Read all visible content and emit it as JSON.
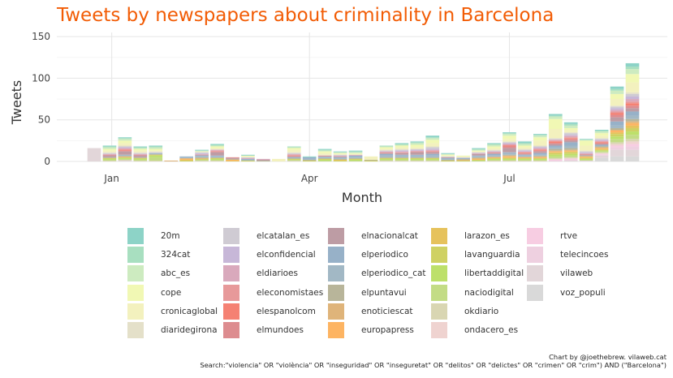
{
  "chart_data": {
    "type": "bar",
    "stacked": true,
    "title": "Tweets by newspapers about criminality in Barcelona",
    "xlabel": "Month",
    "ylabel": "Tweets",
    "ylim": [
      0,
      155
    ],
    "yticks": [
      0,
      50,
      100,
      150
    ],
    "xticks": [
      "Jan",
      "Apr",
      "Jul"
    ],
    "grid": true,
    "legend_position": "bottom",
    "x": [
      "2017-12-24",
      "2017-12-31",
      "2018-01-07",
      "2018-01-14",
      "2018-01-21",
      "2018-01-28",
      "2018-02-04",
      "2018-02-11",
      "2018-02-18",
      "2018-02-25",
      "2018-03-04",
      "2018-03-11",
      "2018-03-18",
      "2018-03-25",
      "2018-04-01",
      "2018-04-08",
      "2018-04-15",
      "2018-04-22",
      "2018-04-29",
      "2018-05-06",
      "2018-05-13",
      "2018-05-20",
      "2018-05-27",
      "2018-06-03",
      "2018-06-10",
      "2018-06-17",
      "2018-06-24",
      "2018-07-01",
      "2018-07-08",
      "2018-07-15",
      "2018-07-22",
      "2018-07-29",
      "2018-08-05",
      "2018-08-12",
      "2018-08-19",
      "2018-08-26"
    ],
    "series": [
      {
        "name": "20m",
        "color": "#8dd3c7",
        "values": [
          0,
          1,
          1,
          1,
          1,
          0,
          0,
          1,
          1,
          0,
          1,
          0,
          0,
          0,
          1,
          1,
          1,
          1,
          0,
          0,
          1,
          1,
          2,
          1,
          0,
          1,
          1,
          1,
          2,
          1,
          2,
          2,
          1,
          1,
          3,
          4
        ]
      },
      {
        "name": "324cat",
        "color": "#a8dfc0",
        "values": [
          0,
          1,
          1,
          1,
          1,
          0,
          0,
          0,
          1,
          0,
          0,
          0,
          0,
          1,
          0,
          1,
          0,
          1,
          0,
          1,
          1,
          1,
          1,
          0,
          0,
          1,
          1,
          1,
          1,
          1,
          1,
          2,
          0,
          1,
          2,
          3
        ]
      },
      {
        "name": "abc_es",
        "color": "#cdebc0",
        "values": [
          0,
          2,
          2,
          1,
          2,
          0,
          0,
          1,
          1,
          0,
          0,
          0,
          0,
          1,
          0,
          1,
          1,
          1,
          0,
          1,
          1,
          2,
          2,
          1,
          0,
          1,
          2,
          2,
          2,
          2,
          3,
          3,
          1,
          2,
          4,
          6
        ]
      },
      {
        "name": "cope",
        "color": "#f1f8b4",
        "values": [
          0,
          2,
          3,
          2,
          2,
          0,
          0,
          0,
          2,
          0,
          1,
          0,
          0,
          2,
          0,
          2,
          1,
          1,
          0,
          2,
          2,
          3,
          4,
          1,
          1,
          1,
          2,
          4,
          2,
          4,
          12,
          2,
          6,
          3,
          6,
          10
        ]
      },
      {
        "name": "cronicaglobal",
        "color": "#f3f1be",
        "values": [
          0,
          2,
          3,
          2,
          1,
          0,
          0,
          1,
          1,
          0,
          1,
          0,
          3,
          3,
          0,
          2,
          1,
          1,
          4,
          1,
          2,
          2,
          4,
          1,
          1,
          1,
          2,
          3,
          2,
          6,
          11,
          3,
          6,
          3,
          8,
          12
        ]
      },
      {
        "name": "diaridegirona",
        "color": "#e4e0c9",
        "values": [
          0,
          1,
          1,
          1,
          1,
          0,
          0,
          0,
          1,
          0,
          0,
          0,
          0,
          1,
          0,
          1,
          0,
          0,
          0,
          1,
          1,
          0,
          1,
          0,
          0,
          0,
          1,
          1,
          1,
          1,
          1,
          1,
          1,
          1,
          1,
          2
        ]
      },
      {
        "name": "elcatalan_es",
        "color": "#cfcbd3",
        "values": [
          0,
          1,
          1,
          1,
          1,
          0,
          0,
          1,
          0,
          0,
          1,
          0,
          0,
          1,
          0,
          0,
          1,
          0,
          0,
          1,
          1,
          1,
          2,
          1,
          1,
          1,
          1,
          1,
          1,
          1,
          1,
          2,
          1,
          1,
          2,
          3
        ]
      },
      {
        "name": "elconfidencial",
        "color": "#c7b7d8",
        "values": [
          0,
          0,
          1,
          0,
          0,
          0,
          0,
          1,
          0,
          0,
          0,
          0,
          0,
          0,
          0,
          0,
          0,
          0,
          0,
          0,
          1,
          1,
          1,
          0,
          0,
          0,
          0,
          1,
          1,
          1,
          0,
          1,
          1,
          1,
          2,
          3
        ]
      },
      {
        "name": "eldiarioes",
        "color": "#d9a9bc",
        "values": [
          0,
          1,
          1,
          1,
          0,
          0,
          0,
          1,
          1,
          0,
          1,
          1,
          0,
          1,
          0,
          0,
          1,
          1,
          0,
          1,
          1,
          1,
          1,
          0,
          0,
          1,
          1,
          1,
          1,
          1,
          1,
          2,
          1,
          1,
          2,
          3
        ]
      },
      {
        "name": "eleconomistaes",
        "color": "#e7999a",
        "values": [
          0,
          0,
          1,
          0,
          0,
          0,
          0,
          0,
          1,
          0,
          0,
          0,
          0,
          1,
          0,
          0,
          0,
          0,
          0,
          0,
          1,
          0,
          1,
          0,
          0,
          0,
          0,
          1,
          0,
          1,
          1,
          1,
          0,
          1,
          2,
          2
        ]
      },
      {
        "name": "elespanolcom",
        "color": "#f58173",
        "values": [
          0,
          0,
          1,
          0,
          0,
          0,
          0,
          0,
          0,
          0,
          0,
          0,
          0,
          0,
          0,
          0,
          0,
          0,
          0,
          0,
          0,
          0,
          0,
          0,
          0,
          0,
          0,
          1,
          1,
          1,
          2,
          1,
          0,
          1,
          2,
          3
        ]
      },
      {
        "name": "elmundoes",
        "color": "#dd8c8f",
        "values": [
          0,
          1,
          1,
          1,
          0,
          0,
          0,
          0,
          1,
          1,
          0,
          0,
          0,
          1,
          0,
          1,
          0,
          0,
          0,
          1,
          0,
          1,
          1,
          0,
          0,
          0,
          1,
          2,
          1,
          1,
          1,
          2,
          1,
          1,
          3,
          3
        ]
      },
      {
        "name": "elnacionalcat",
        "color": "#bd9ca4",
        "values": [
          0,
          2,
          4,
          2,
          0,
          0,
          0,
          1,
          4,
          1,
          0,
          1,
          0,
          1,
          0,
          0,
          1,
          0,
          0,
          1,
          2,
          3,
          2,
          1,
          0,
          2,
          1,
          5,
          1,
          2,
          2,
          2,
          1,
          1,
          5,
          4
        ]
      },
      {
        "name": "elperiodico",
        "color": "#97b1c8",
        "values": [
          0,
          0,
          1,
          0,
          1,
          0,
          1,
          1,
          1,
          0,
          1,
          0,
          0,
          1,
          2,
          1,
          1,
          2,
          0,
          2,
          1,
          1,
          2,
          1,
          1,
          1,
          2,
          1,
          1,
          2,
          2,
          4,
          0,
          1,
          5,
          5
        ]
      },
      {
        "name": "elperiodico_cat",
        "color": "#a2b8c5",
        "values": [
          0,
          0,
          0,
          0,
          0,
          0,
          1,
          1,
          1,
          0,
          1,
          0,
          0,
          0,
          1,
          1,
          1,
          1,
          0,
          2,
          2,
          2,
          2,
          1,
          0,
          1,
          1,
          2,
          1,
          1,
          2,
          3,
          0,
          1,
          3,
          4
        ]
      },
      {
        "name": "elpuntavui",
        "color": "#b8b59a",
        "values": [
          0,
          1,
          1,
          1,
          1,
          0,
          0,
          1,
          1,
          1,
          0,
          1,
          0,
          1,
          1,
          1,
          1,
          1,
          1,
          1,
          1,
          1,
          1,
          1,
          1,
          1,
          1,
          1,
          1,
          1,
          2,
          2,
          1,
          1,
          2,
          3
        ]
      },
      {
        "name": "enoticiescat",
        "color": "#dfb47a",
        "values": [
          0,
          0,
          1,
          0,
          0,
          1,
          1,
          1,
          0,
          0,
          0,
          0,
          0,
          0,
          0,
          0,
          0,
          0,
          0,
          0,
          0,
          0,
          0,
          0,
          1,
          1,
          0,
          1,
          0,
          1,
          1,
          1,
          0,
          1,
          1,
          2
        ]
      },
      {
        "name": "europapress",
        "color": "#fdb462",
        "values": [
          0,
          0,
          0,
          0,
          0,
          0,
          1,
          0,
          0,
          1,
          0,
          0,
          0,
          0,
          0,
          0,
          0,
          0,
          0,
          0,
          0,
          0,
          0,
          0,
          0,
          1,
          1,
          1,
          1,
          1,
          1,
          1,
          1,
          1,
          2,
          3
        ]
      },
      {
        "name": "larazon_es",
        "color": "#e6c25c",
        "values": [
          0,
          0,
          0,
          0,
          0,
          0,
          1,
          0,
          0,
          1,
          0,
          0,
          0,
          0,
          0,
          0,
          1,
          0,
          0,
          0,
          0,
          0,
          0,
          0,
          0,
          0,
          0,
          1,
          0,
          0,
          1,
          1,
          1,
          1,
          2,
          3
        ]
      },
      {
        "name": "lavanguardia",
        "color": "#cfd163",
        "values": [
          0,
          1,
          1,
          1,
          1,
          0,
          1,
          1,
          1,
          0,
          1,
          0,
          0,
          1,
          1,
          1,
          1,
          1,
          1,
          1,
          1,
          1,
          1,
          1,
          1,
          1,
          1,
          1,
          1,
          1,
          2,
          2,
          1,
          1,
          3,
          4
        ]
      },
      {
        "name": "libertaddigital",
        "color": "#bde06a",
        "values": [
          0,
          1,
          1,
          1,
          2,
          0,
          0,
          0,
          1,
          0,
          0,
          0,
          0,
          0,
          0,
          1,
          0,
          1,
          0,
          1,
          1,
          1,
          1,
          0,
          0,
          0,
          1,
          1,
          1,
          1,
          2,
          2,
          1,
          1,
          3,
          4
        ]
      },
      {
        "name": "naciodigital",
        "color": "#c3dc85",
        "values": [
          0,
          1,
          1,
          1,
          4,
          0,
          0,
          1,
          1,
          0,
          0,
          0,
          0,
          1,
          0,
          1,
          0,
          1,
          0,
          1,
          1,
          1,
          1,
          0,
          0,
          1,
          1,
          1,
          1,
          1,
          2,
          2,
          1,
          1,
          4,
          5
        ]
      },
      {
        "name": "okdiario",
        "color": "#d9d6b2",
        "values": [
          0,
          1,
          1,
          1,
          1,
          0,
          0,
          1,
          1,
          0,
          0,
          0,
          0,
          1,
          0,
          0,
          0,
          0,
          0,
          1,
          1,
          1,
          1,
          0,
          0,
          0,
          1,
          1,
          1,
          1,
          1,
          1,
          0,
          1,
          2,
          3
        ]
      },
      {
        "name": "ondacero_es",
        "color": "#efd3d0",
        "values": [
          0,
          0,
          0,
          0,
          0,
          0,
          0,
          0,
          0,
          0,
          0,
          0,
          0,
          0,
          0,
          0,
          0,
          0,
          0,
          0,
          0,
          0,
          0,
          0,
          0,
          0,
          0,
          0,
          0,
          0,
          1,
          1,
          0,
          1,
          2,
          3
        ]
      },
      {
        "name": "rtve",
        "color": "#f7cde2",
        "values": [
          0,
          0,
          0,
          0,
          0,
          0,
          0,
          0,
          0,
          0,
          0,
          0,
          0,
          0,
          0,
          0,
          0,
          0,
          0,
          0,
          0,
          0,
          0,
          0,
          0,
          0,
          0,
          0,
          0,
          0,
          1,
          1,
          0,
          1,
          2,
          3
        ]
      },
      {
        "name": "telecincoes",
        "color": "#eed0e0",
        "values": [
          0,
          0,
          0,
          0,
          0,
          0,
          0,
          0,
          0,
          0,
          0,
          0,
          0,
          0,
          0,
          0,
          0,
          0,
          0,
          0,
          0,
          0,
          0,
          0,
          0,
          0,
          0,
          0,
          0,
          0,
          1,
          1,
          0,
          1,
          3,
          4
        ]
      },
      {
        "name": "vilaweb",
        "color": "#e2d6d9",
        "values": [
          16,
          0,
          1,
          0,
          0,
          0,
          0,
          0,
          0,
          0,
          0,
          0,
          0,
          0,
          0,
          0,
          0,
          0,
          0,
          0,
          0,
          0,
          0,
          0,
          0,
          0,
          0,
          0,
          0,
          0,
          0,
          1,
          1,
          3,
          8,
          8
        ]
      },
      {
        "name": "voz_populi",
        "color": "#d9d9d9",
        "values": [
          0,
          0,
          0,
          0,
          0,
          0,
          0,
          0,
          0,
          0,
          0,
          0,
          0,
          0,
          0,
          0,
          0,
          0,
          0,
          0,
          0,
          0,
          0,
          0,
          0,
          0,
          0,
          0,
          0,
          0,
          0,
          0,
          0,
          4,
          6,
          6
        ]
      }
    ]
  },
  "caption": {
    "line1": "Chart by @joethebrew. vilaweb.cat",
    "line2": "Search:\"violencia\" OR \"violència\" OR \"inseguridad\" OR \"inseguretat\" OR \"delitos\" OR \"delictes\" OR \"crimen\" OR \"crim\") AND (\"Barcelona\")"
  }
}
